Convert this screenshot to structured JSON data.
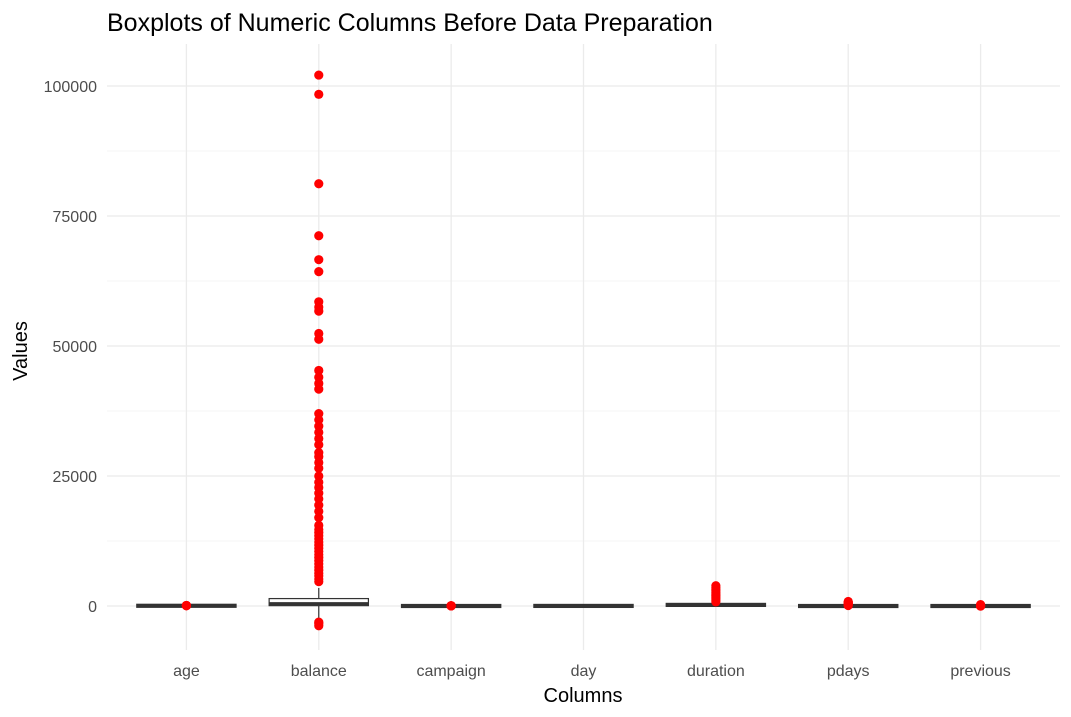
{
  "chart_data": {
    "type": "boxplot",
    "title": "Boxplots of Numeric Columns Before Data Preparation",
    "xlabel": "Columns",
    "ylabel": "Values",
    "ylim": [
      -8000,
      108000
    ],
    "yticks": [
      0,
      25000,
      50000,
      75000,
      100000
    ],
    "ytick_labels": [
      "0",
      "25000",
      "50000",
      "75000",
      "100000"
    ],
    "grid": true,
    "outlier_color": "#ff0000",
    "box_color": "#333333",
    "categories": [
      "age",
      "balance",
      "campaign",
      "day",
      "duration",
      "pdays",
      "previous"
    ],
    "boxes": [
      {
        "name": "age",
        "q1": 33,
        "median": 39,
        "q3": 48,
        "whisker_low": 18,
        "whisker_high": 70,
        "outliers": [
          72,
          75,
          80,
          85,
          90,
          95
        ]
      },
      {
        "name": "balance",
        "q1": 72,
        "median": 448,
        "q3": 1428,
        "whisker_low": -3300,
        "whisker_high": 3460,
        "outliers": [
          -3800,
          -3400,
          -3100,
          4700,
          5200,
          5800,
          6300,
          6900,
          7500,
          8100,
          8700,
          9300,
          9900,
          10500,
          11100,
          11700,
          12300,
          12900,
          13500,
          14100,
          14700,
          15500,
          17000,
          18200,
          19400,
          20600,
          21700,
          22800,
          23800,
          25000,
          26500,
          27600,
          28700,
          29500,
          31000,
          32200,
          33400,
          34600,
          35800,
          37000,
          41700,
          42800,
          44000,
          45300,
          51300,
          52400,
          56700,
          57500,
          58500,
          64300,
          66600,
          71200,
          81200,
          98400,
          102100
        ]
      },
      {
        "name": "campaign",
        "q1": 1,
        "median": 2,
        "q3": 3,
        "whisker_low": 1,
        "whisker_high": 6,
        "outliers": [
          10,
          20,
          30,
          40,
          50,
          63
        ]
      },
      {
        "name": "day",
        "q1": 8,
        "median": 16,
        "q3": 21,
        "whisker_low": 1,
        "whisker_high": 31,
        "outliers": []
      },
      {
        "name": "duration",
        "q1": 103,
        "median": 180,
        "q3": 319,
        "whisker_low": 0,
        "whisker_high": 643,
        "outliers": [
          800,
          1100,
          1400,
          1700,
          2000,
          2300,
          2600,
          2900,
          3200,
          3500,
          3900
        ]
      },
      {
        "name": "pdays",
        "q1": -1,
        "median": -1,
        "q3": -1,
        "whisker_low": -1,
        "whisker_high": -1,
        "outliers": [
          100,
          200,
          300,
          400,
          500,
          600,
          700,
          800,
          871
        ]
      },
      {
        "name": "previous",
        "q1": 0,
        "median": 0,
        "q3": 0,
        "whisker_low": 0,
        "whisker_high": 0,
        "outliers": [
          1,
          5,
          10,
          30,
          58,
          275
        ]
      }
    ]
  }
}
